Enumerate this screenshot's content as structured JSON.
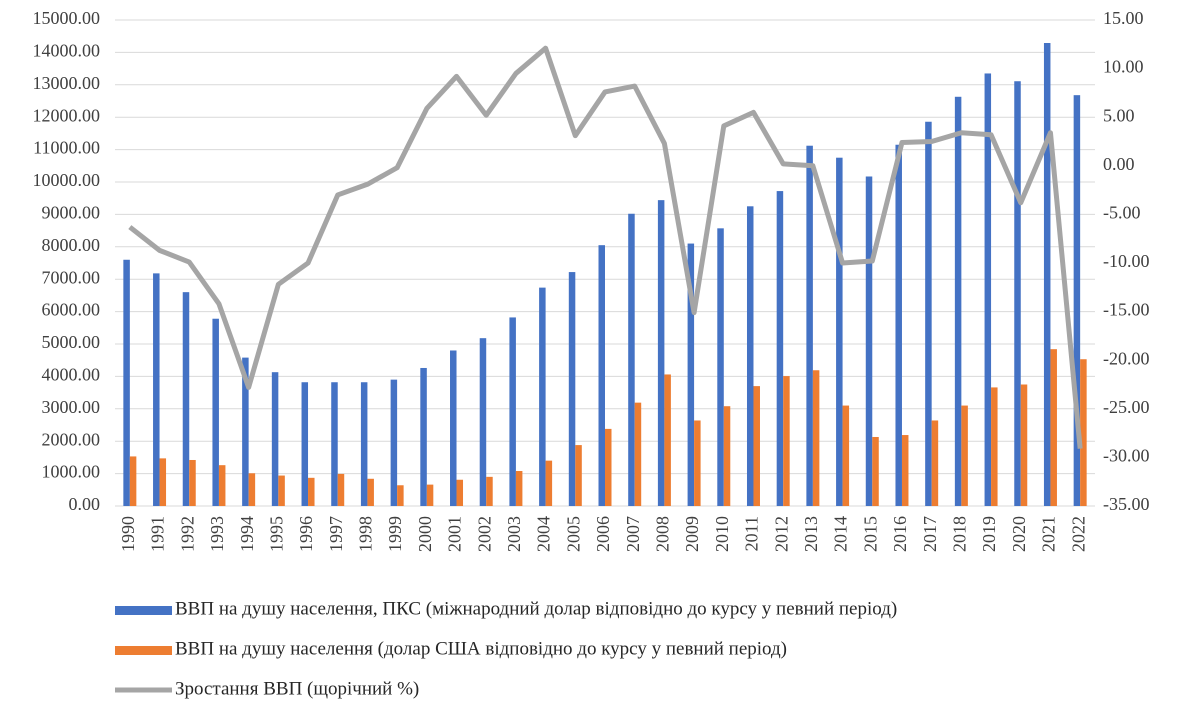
{
  "chart_data": {
    "type": "bar",
    "categories": [
      "1990",
      "1991",
      "1992",
      "1993",
      "1994",
      "1995",
      "1996",
      "1997",
      "1998",
      "1999",
      "2000",
      "2001",
      "2002",
      "2003",
      "2004",
      "2005",
      "2006",
      "2007",
      "2008",
      "2009",
      "2010",
      "2011",
      "2012",
      "2013",
      "2014",
      "2015",
      "2016",
      "2017",
      "2018",
      "2019",
      "2020",
      "2021",
      "2022"
    ],
    "series": [
      {
        "name": "ВВП на душу населення, ПКС (міжнародний долар відповідно до курсу у певний період)",
        "color": "#4472c4",
        "type": "bar",
        "values": [
          7600,
          7180,
          6600,
          5780,
          4580,
          4130,
          3820,
          3820,
          3820,
          3900,
          4260,
          4800,
          5180,
          5820,
          6740,
          7220,
          8050,
          9020,
          9440,
          8100,
          8570,
          9250,
          9720,
          11120,
          10750,
          10170,
          11150,
          11860,
          12630,
          13350,
          13110,
          14290,
          12680
        ]
      },
      {
        "name": "ВВП на душу населення (долар США відповідно до курсу у певний період)",
        "color": "#ed7d31",
        "type": "bar",
        "values": [
          1530,
          1470,
          1420,
          1260,
          1010,
          940,
          870,
          990,
          840,
          640,
          660,
          810,
          900,
          1080,
          1400,
          1880,
          2380,
          3190,
          4060,
          2640,
          3080,
          3700,
          4010,
          4190,
          3100,
          2130,
          2190,
          2640,
          3100,
          3660,
          3750,
          4840,
          4530
        ]
      },
      {
        "name": "Зростання ВВП (щорічний %)",
        "color": "#a5a5a5",
        "type": "line",
        "axis": "y2",
        "values": [
          -6.3,
          -8.7,
          -9.9,
          -14.2,
          -22.8,
          -12.2,
          -10.0,
          -3.0,
          -1.9,
          -0.2,
          5.9,
          9.2,
          5.2,
          9.5,
          12.1,
          3.1,
          7.6,
          8.2,
          2.3,
          -15.1,
          4.1,
          5.5,
          0.2,
          0.0,
          -10.0,
          -9.8,
          2.4,
          2.5,
          3.4,
          3.2,
          -3.8,
          3.4,
          -29.1
        ]
      }
    ],
    "ylim": [
      0,
      15000
    ],
    "yticks": [
      {
        "value": 0,
        "label": "0.00"
      },
      {
        "value": 1000,
        "label": "1000.00"
      },
      {
        "value": 2000,
        "label": "2000.00"
      },
      {
        "value": 3000,
        "label": "3000.00"
      },
      {
        "value": 4000,
        "label": "4000.00"
      },
      {
        "value": 5000,
        "label": "5000.00"
      },
      {
        "value": 6000,
        "label": "6000.00"
      },
      {
        "value": 7000,
        "label": "7000.00"
      },
      {
        "value": 8000,
        "label": "8000.00"
      },
      {
        "value": 9000,
        "label": "9000.00"
      },
      {
        "value": 10000,
        "label": "10000.00"
      },
      {
        "value": 11000,
        "label": "11000.00"
      },
      {
        "value": 12000,
        "label": "12000.00"
      },
      {
        "value": 13000,
        "label": "13000.00"
      },
      {
        "value": 14000,
        "label": "14000.00"
      },
      {
        "value": 15000,
        "label": "15000.00"
      }
    ],
    "y2lim": [
      -35,
      15
    ],
    "y2ticks": [
      {
        "value": -35,
        "label": "-35.00"
      },
      {
        "value": -30,
        "label": "-30.00"
      },
      {
        "value": -25,
        "label": "-25.00"
      },
      {
        "value": -20,
        "label": "-20.00"
      },
      {
        "value": -15,
        "label": "-15.00"
      },
      {
        "value": -10,
        "label": "-10.00"
      },
      {
        "value": -5,
        "label": "-5.00"
      },
      {
        "value": 0,
        "label": "0.00"
      },
      {
        "value": 5,
        "label": "5.00"
      },
      {
        "value": 10,
        "label": "10.00"
      },
      {
        "value": 15,
        "label": "15.00"
      }
    ],
    "grid": true,
    "legend": "bottom"
  }
}
